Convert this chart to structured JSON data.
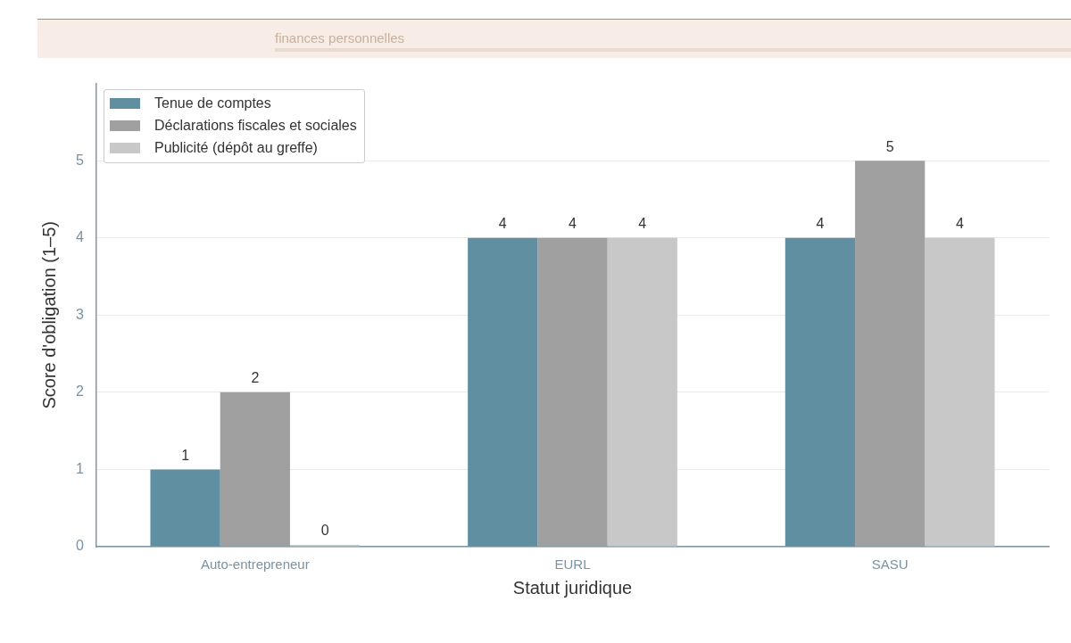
{
  "chart_data": {
    "type": "bar",
    "subtitle": "finances personnelles",
    "xlabel": "Statut juridique",
    "ylabel": "Score d'obligation (1–5)",
    "categories": [
      "Auto-entrepreneur",
      "EURL",
      "SASU"
    ],
    "series": [
      {
        "name": "Tenue de comptes",
        "color": "#5f8fa0",
        "values": [
          1,
          4,
          4
        ]
      },
      {
        "name": "Déclarations fiscales et sociales",
        "color": "#a0a0a0",
        "values": [
          2,
          4,
          5
        ]
      },
      {
        "name": "Publicité (dépôt au greffe)",
        "color": "#c8c8c8",
        "values": [
          0,
          4,
          4
        ]
      }
    ],
    "ylim": [
      0,
      6
    ],
    "yticks": [
      0,
      1,
      2,
      3,
      4,
      5
    ],
    "grid": "y",
    "legend": "top left",
    "data_labels": true
  }
}
